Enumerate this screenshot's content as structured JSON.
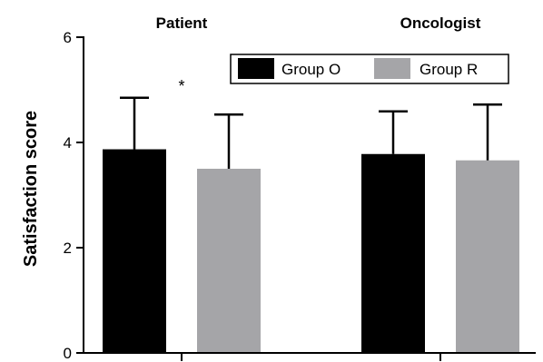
{
  "chart_data": {
    "type": "bar",
    "title": "",
    "xlabel": "",
    "ylabel": "Satisfaction score",
    "ylim": [
      0,
      6
    ],
    "yticks": [
      0,
      2,
      4,
      6
    ],
    "categories": [
      "Patient",
      "Oncologist"
    ],
    "series": [
      {
        "name": "Group O",
        "color": "#000000",
        "values": [
          3.87,
          3.78
        ],
        "errors": [
          0.98,
          0.81
        ]
      },
      {
        "name": "Group R",
        "color": "#a5a5a8",
        "values": [
          3.5,
          3.66
        ],
        "errors": [
          1.03,
          1.06
        ]
      }
    ],
    "legend": {
      "placement": "top-right",
      "entries": [
        "Group O",
        "Group R"
      ]
    },
    "annotations": [
      {
        "text": "*",
        "category": "Patient"
      }
    ],
    "grid": false
  }
}
